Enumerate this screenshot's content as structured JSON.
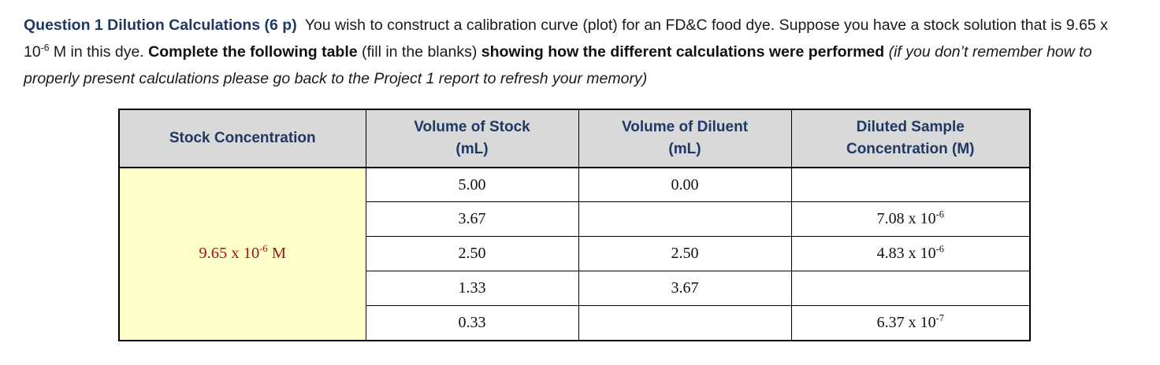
{
  "colors": {
    "heading_blue": "#1f3864",
    "header_bg_gray": "#d9d9d9",
    "stock_cell_yellow": "#ffffcc",
    "stock_text_red": "#a31515",
    "border_black": "#000000"
  },
  "document": {
    "intro": {
      "question_label": "Question 1 Dilution Calculations (6 p)",
      "seg_a": "You wish to construct a calibration curve (plot) for an FD&C food dye. Suppose you have a stock solution that is 9.65 x 10",
      "exp_a": "-6",
      "seg_b": " M in this dye. ",
      "bold_1": "Complete the following table",
      "seg_c": " (fill in the blanks) ",
      "bold_2": "showing how the different calculations were performed",
      "seg_d": " ",
      "italic": "(if you don’t remember how to properly present calculations please go back to the Project 1 report to refresh your memory)"
    },
    "table": {
      "headers": [
        {
          "line1": "Stock Concentration",
          "line2": ""
        },
        {
          "line1": "Volume of Stock",
          "line2": "(mL)"
        },
        {
          "line1": "Volume of Diluent",
          "line2": "(mL)"
        },
        {
          "line1": "Diluted Sample",
          "line2": "Concentration (M)"
        }
      ],
      "stock": {
        "base": "9.65 x 10",
        "exp": "-6",
        "suffix": " M"
      },
      "rows": [
        {
          "stock_ml": "5.00",
          "diluent_ml": "0.00",
          "diluted": {
            "base": "",
            "exp": ""
          }
        },
        {
          "stock_ml": "3.67",
          "diluent_ml": "",
          "diluted": {
            "base": "7.08 x 10",
            "exp": "-6"
          }
        },
        {
          "stock_ml": "2.50",
          "diluent_ml": "2.50",
          "diluted": {
            "base": "4.83 x 10",
            "exp": "-6"
          }
        },
        {
          "stock_ml": "1.33",
          "diluent_ml": "3.67",
          "diluted": {
            "base": "",
            "exp": ""
          }
        },
        {
          "stock_ml": "0.33",
          "diluent_ml": "",
          "diluted": {
            "base": "6.37 x 10",
            "exp": "-7"
          }
        }
      ]
    }
  }
}
